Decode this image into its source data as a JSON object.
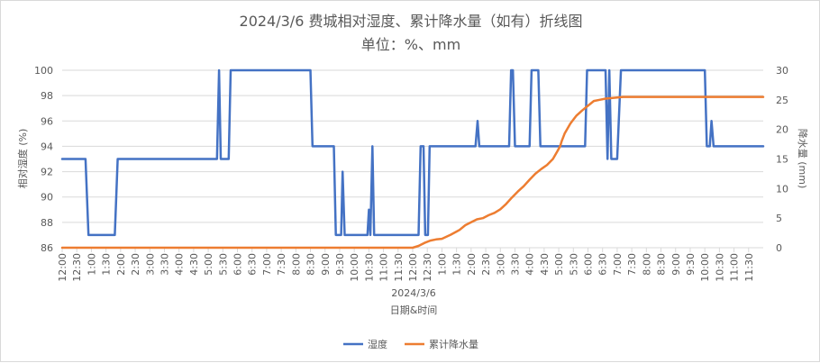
{
  "chart_data": {
    "type": "line",
    "title": "2024/3/6 费城相对湿度、累计降水量（如有）折线图",
    "subtitle": "单位：%、mm",
    "date_label": "2024/3/6",
    "xlabel": "日期&时间",
    "ylabel_left": "相对湿度 (%)",
    "ylabel_right": "降水量 (mm)",
    "ylim_left": [
      86,
      100
    ],
    "ylim_right": [
      0,
      30
    ],
    "yticks_left": [
      "86",
      "88",
      "90",
      "92",
      "94",
      "96",
      "98",
      "100"
    ],
    "yticks_right": [
      "0",
      "5",
      "10",
      "15",
      "20",
      "25",
      "30"
    ],
    "x_range_hours": [
      12,
      36
    ],
    "x_ticks": [
      "12:00",
      "12:30",
      "1:00",
      "1:30",
      "2:00",
      "2:30",
      "3:00",
      "3:30",
      "4:00",
      "4:30",
      "5:00",
      "5:30",
      "6:00",
      "6:30",
      "7:00",
      "7:30",
      "8:00",
      "8:30",
      "9:00",
      "9:30",
      "10:00",
      "10:30",
      "11:00",
      "11:30",
      "12:00",
      "12:30",
      "1:00",
      "1:30",
      "2:00",
      "2:30",
      "3:00",
      "3:30",
      "4:00",
      "4:30",
      "5:00",
      "5:30",
      "6:00",
      "6:30",
      "7:00",
      "7:30",
      "8:00",
      "8:30",
      "9:00",
      "9:30",
      "10:00",
      "10:30",
      "11:00",
      "11:30"
    ],
    "legend_position": "bottom",
    "grid": "horizontal",
    "series": [
      {
        "name": "湿度",
        "axis": "left",
        "color": "#4472C4",
        "points": [
          [
            12.0,
            93
          ],
          [
            12.8,
            93
          ],
          [
            12.9,
            87
          ],
          [
            13.8,
            87
          ],
          [
            13.9,
            93
          ],
          [
            17.3,
            93
          ],
          [
            17.37,
            100
          ],
          [
            17.43,
            93
          ],
          [
            17.7,
            93
          ],
          [
            17.77,
            100
          ],
          [
            20.5,
            100
          ],
          [
            20.57,
            94
          ],
          [
            21.3,
            94
          ],
          [
            21.37,
            87
          ],
          [
            21.55,
            87
          ],
          [
            21.6,
            92
          ],
          [
            21.67,
            87
          ],
          [
            22.45,
            87
          ],
          [
            22.5,
            89
          ],
          [
            22.55,
            87
          ],
          [
            22.62,
            94
          ],
          [
            22.68,
            87
          ],
          [
            24.2,
            87
          ],
          [
            24.27,
            94
          ],
          [
            24.37,
            94
          ],
          [
            24.43,
            87
          ],
          [
            24.52,
            87
          ],
          [
            24.58,
            94
          ],
          [
            26.15,
            94
          ],
          [
            26.22,
            96
          ],
          [
            26.28,
            94
          ],
          [
            27.3,
            94
          ],
          [
            27.37,
            100
          ],
          [
            27.43,
            100
          ],
          [
            27.5,
            94
          ],
          [
            28.0,
            94
          ],
          [
            28.07,
            100
          ],
          [
            28.3,
            100
          ],
          [
            28.37,
            94
          ],
          [
            29.9,
            94
          ],
          [
            29.97,
            100
          ],
          [
            30.6,
            100
          ],
          [
            30.67,
            93
          ],
          [
            30.73,
            100
          ],
          [
            30.8,
            93
          ],
          [
            31.0,
            93
          ],
          [
            31.13,
            100
          ],
          [
            34.0,
            100
          ],
          [
            34.07,
            94
          ],
          [
            34.17,
            94
          ],
          [
            34.23,
            96
          ],
          [
            34.3,
            94
          ],
          [
            36.0,
            94
          ]
        ]
      },
      {
        "name": "累计降水量",
        "axis": "right",
        "color": "#ED7D31",
        "points": [
          [
            12.0,
            0
          ],
          [
            24.0,
            0
          ],
          [
            24.2,
            0.3
          ],
          [
            24.4,
            0.8
          ],
          [
            24.6,
            1.2
          ],
          [
            24.8,
            1.4
          ],
          [
            25.0,
            1.5
          ],
          [
            25.3,
            2.2
          ],
          [
            25.6,
            3.0
          ],
          [
            25.8,
            3.8
          ],
          [
            26.0,
            4.3
          ],
          [
            26.2,
            4.8
          ],
          [
            26.4,
            5.0
          ],
          [
            26.6,
            5.5
          ],
          [
            26.8,
            5.9
          ],
          [
            27.0,
            6.5
          ],
          [
            27.2,
            7.4
          ],
          [
            27.4,
            8.5
          ],
          [
            27.6,
            9.5
          ],
          [
            27.8,
            10.4
          ],
          [
            28.0,
            11.5
          ],
          [
            28.2,
            12.5
          ],
          [
            28.4,
            13.3
          ],
          [
            28.6,
            14.0
          ],
          [
            28.8,
            15.0
          ],
          [
            28.95,
            16.3
          ],
          [
            29.05,
            17.2
          ],
          [
            29.1,
            18.0
          ],
          [
            29.2,
            19.3
          ],
          [
            29.4,
            21.0
          ],
          [
            29.6,
            22.3
          ],
          [
            29.8,
            23.2
          ],
          [
            30.0,
            24.0
          ],
          [
            30.2,
            24.8
          ],
          [
            30.4,
            25.0
          ],
          [
            30.6,
            25.2
          ],
          [
            30.8,
            25.3
          ],
          [
            31.2,
            25.5
          ],
          [
            36.0,
            25.5
          ]
        ]
      }
    ]
  }
}
